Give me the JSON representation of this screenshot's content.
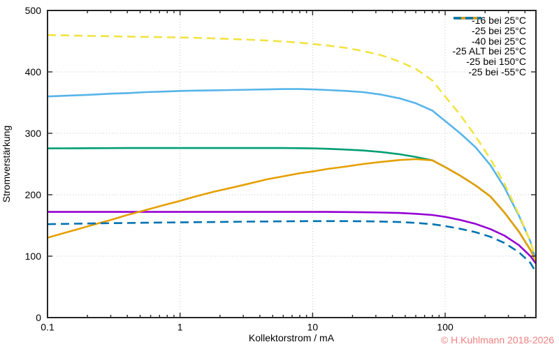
{
  "chart_data": {
    "type": "line",
    "title": "",
    "xlabel": "Kollektorstrom / mA",
    "ylabel": "Stromverstärkung",
    "xscale": "log",
    "xlim": [
      0.1,
      484
    ],
    "ylim": [
      0,
      500
    ],
    "grid": "dotted lines at major ticks",
    "legend_position": "top-right-inside",
    "x_ticks": {
      "major": [
        0.1,
        1,
        10,
        100
      ],
      "labels": [
        "0.1",
        "1",
        "10",
        "100"
      ]
    },
    "y_ticks": {
      "major": [
        0,
        100,
        200,
        300,
        400,
        500
      ],
      "labels": [
        "0",
        "100",
        "200",
        "300",
        "400",
        "500"
      ]
    },
    "x": [
      0.1,
      0.13,
      0.17,
      0.22,
      0.3,
      0.4,
      0.55,
      0.75,
      1,
      1.3,
      1.8,
      2.4,
      3.3,
      4.5,
      6,
      8,
      10,
      13,
      18,
      24,
      33,
      45,
      60,
      80,
      100,
      130,
      170,
      220,
      280,
      360,
      440,
      484
    ],
    "series": [
      {
        "name": "-16 bei 25°C",
        "color": "#9400d3",
        "style": "solid",
        "values": [
          172,
          172,
          172,
          172,
          172,
          172,
          172,
          172,
          172,
          172,
          172,
          172,
          172,
          172,
          172,
          172,
          172,
          172,
          171.8,
          171.5,
          171,
          170.3,
          169,
          167,
          164,
          159,
          152.5,
          144,
          133.5,
          118,
          100,
          88
        ]
      },
      {
        "name": "-25 bei 25°C",
        "color": "#009e73",
        "style": "solid",
        "values": [
          275.5,
          275.6,
          275.7,
          275.8,
          275.9,
          276,
          276,
          276,
          276,
          276,
          276,
          276,
          276,
          276,
          276,
          275.8,
          275.5,
          274.8,
          273.5,
          272,
          269.5,
          266,
          261.5,
          256,
          245,
          231,
          215,
          197,
          171,
          140,
          110,
          92
        ]
      },
      {
        "name": "-40 bei 25°C",
        "color": "#56b4e9",
        "style": "solid",
        "values": [
          360,
          361,
          362,
          363,
          364.5,
          365.5,
          367,
          368,
          369,
          369.5,
          370,
          370.5,
          371,
          371.5,
          372,
          372,
          371.5,
          370.5,
          369,
          367,
          363,
          357,
          349,
          337,
          320,
          300,
          277,
          248,
          212,
          166,
          124,
          93
        ]
      },
      {
        "name": "-25 ALT bei 25°C",
        "color": "#e69f00",
        "style": "solid",
        "values": [
          130,
          137,
          144,
          151,
          159,
          167,
          175,
          183,
          190,
          197,
          205,
          211,
          218,
          225,
          230,
          235,
          238,
          242,
          246,
          250,
          253.5,
          256.5,
          258,
          256,
          245,
          231,
          215,
          197,
          171,
          140,
          110,
          92
        ]
      },
      {
        "name": "-25 bei 150°C",
        "color": "#f0e442",
        "style": "dashed",
        "values": [
          460,
          459.5,
          459,
          458.5,
          458,
          457.5,
          457,
          456.5,
          456,
          455.5,
          454.5,
          453.5,
          452.5,
          451,
          449.5,
          447.5,
          445.5,
          443,
          439,
          434,
          427,
          417,
          405,
          386,
          360,
          330,
          295,
          258,
          218,
          168,
          124,
          94
        ]
      },
      {
        "name": "-25 bei -55°C",
        "color": "#0072b2",
        "style": "dashed",
        "values": [
          152,
          152.5,
          153,
          153.3,
          153.7,
          154,
          154.4,
          154.8,
          155,
          155.3,
          155.6,
          155.9,
          156.2,
          156.5,
          156.7,
          156.9,
          157,
          157,
          157,
          156.8,
          156.4,
          155.6,
          154.2,
          152,
          149,
          144.5,
          139,
          131.5,
          121.5,
          106.5,
          89,
          74
        ]
      }
    ]
  },
  "watermark": {
    "text": "© H.Kuhlmann 2018-2026",
    "color": "#f08080"
  }
}
